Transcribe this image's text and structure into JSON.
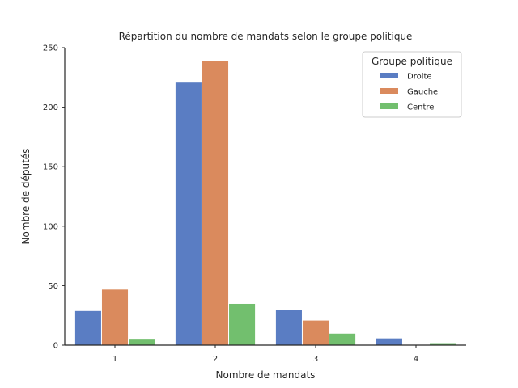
{
  "chart_data": {
    "type": "bar",
    "title": "Répartition du nombre de mandats selon le groupe politique",
    "xlabel": "Nombre de mandats",
    "ylabel": "Nombre de députés",
    "categories": [
      "1",
      "2",
      "3",
      "4"
    ],
    "ylim": [
      0,
      250
    ],
    "yticks": [
      "0",
      "50",
      "100",
      "150",
      "200",
      "250"
    ],
    "legend": {
      "title": "Groupe politique",
      "position": "top-right"
    },
    "series": [
      {
        "name": "Droite",
        "color": "#5a7dc3",
        "values": [
          29,
          221,
          30,
          6
        ]
      },
      {
        "name": "Gauche",
        "color": "#da8a5d",
        "values": [
          47,
          239,
          21,
          0
        ]
      },
      {
        "name": "Centre",
        "color": "#72bf6e",
        "values": [
          5,
          35,
          10,
          2
        ]
      }
    ],
    "grid": false
  }
}
